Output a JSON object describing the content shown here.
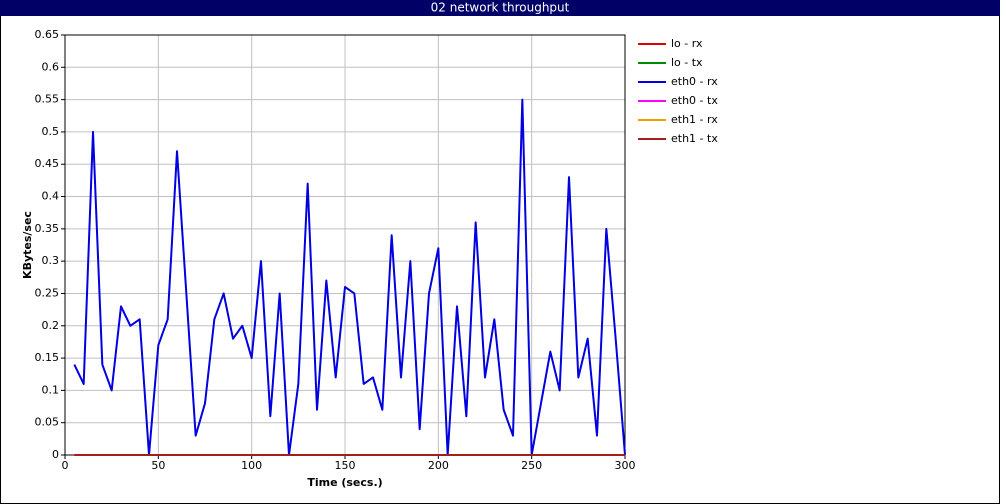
{
  "chart_data": {
    "type": "line",
    "title": "02 network throughput",
    "x_label": "Time (secs.)",
    "y_label": "KBytes/sec",
    "x": [
      5,
      10,
      15,
      20,
      25,
      30,
      35,
      40,
      45,
      50,
      55,
      60,
      65,
      70,
      75,
      80,
      85,
      90,
      95,
      100,
      105,
      110,
      115,
      120,
      125,
      130,
      135,
      140,
      145,
      150,
      155,
      160,
      165,
      170,
      175,
      180,
      185,
      190,
      195,
      200,
      205,
      210,
      215,
      220,
      225,
      230,
      235,
      240,
      245,
      250,
      255,
      260,
      265,
      270,
      275,
      280,
      285,
      290,
      295,
      300
    ],
    "series": [
      {
        "name": "lo - rx",
        "color": "#e00000",
        "values": [
          0,
          0,
          0,
          0,
          0,
          0,
          0,
          0,
          0,
          0,
          0,
          0,
          0,
          0,
          0,
          0,
          0,
          0,
          0,
          0,
          0,
          0,
          0,
          0,
          0,
          0,
          0,
          0,
          0,
          0,
          0,
          0,
          0,
          0,
          0,
          0,
          0,
          0,
          0,
          0,
          0,
          0,
          0,
          0,
          0,
          0,
          0,
          0,
          0,
          0,
          0,
          0,
          0,
          0,
          0,
          0,
          0,
          0,
          0,
          0
        ]
      },
      {
        "name": "lo - tx",
        "color": "#008c00",
        "values": [
          0,
          0,
          0,
          0,
          0,
          0,
          0,
          0,
          0,
          0,
          0,
          0,
          0,
          0,
          0,
          0,
          0,
          0,
          0,
          0,
          0,
          0,
          0,
          0,
          0,
          0,
          0,
          0,
          0,
          0,
          0,
          0,
          0,
          0,
          0,
          0,
          0,
          0,
          0,
          0,
          0,
          0,
          0,
          0,
          0,
          0,
          0,
          0,
          0,
          0,
          0,
          0,
          0,
          0,
          0,
          0,
          0,
          0,
          0,
          0
        ]
      },
      {
        "name": "eth0 - rx",
        "color": "#0000e0",
        "values": [
          0.14,
          0.11,
          0.5,
          0.14,
          0.1,
          0.23,
          0.2,
          0.21,
          0,
          0.17,
          0.21,
          0.47,
          0.25,
          0.03,
          0.08,
          0.21,
          0.25,
          0.18,
          0.2,
          0.15,
          0.3,
          0.06,
          0.25,
          0,
          0.11,
          0.42,
          0.07,
          0.27,
          0.12,
          0.26,
          0.25,
          0.11,
          0.12,
          0.07,
          0.34,
          0.12,
          0.3,
          0.04,
          0.25,
          0.32,
          0,
          0.23,
          0.06,
          0.36,
          0.12,
          0.21,
          0.07,
          0.03,
          0.55,
          0,
          0.08,
          0.16,
          0.1,
          0.43,
          0.12,
          0.18,
          0.03,
          0.35,
          0.18,
          0
        ]
      },
      {
        "name": "eth0 - tx",
        "color": "#ff00ff",
        "values": [
          0,
          0,
          0,
          0,
          0,
          0,
          0,
          0,
          0,
          0,
          0,
          0,
          0,
          0,
          0,
          0,
          0,
          0,
          0,
          0,
          0,
          0,
          0,
          0,
          0,
          0,
          0,
          0,
          0,
          0,
          0,
          0,
          0,
          0,
          0,
          0,
          0,
          0,
          0,
          0,
          0,
          0,
          0,
          0,
          0,
          0,
          0,
          0,
          0,
          0,
          0,
          0,
          0,
          0,
          0,
          0,
          0,
          0,
          0,
          0
        ]
      },
      {
        "name": "eth1 - rx",
        "color": "#f0a000",
        "values": [
          0,
          0,
          0,
          0,
          0,
          0,
          0,
          0,
          0,
          0,
          0,
          0,
          0,
          0,
          0,
          0,
          0,
          0,
          0,
          0,
          0,
          0,
          0,
          0,
          0,
          0,
          0,
          0,
          0,
          0,
          0,
          0,
          0,
          0,
          0,
          0,
          0,
          0,
          0,
          0,
          0,
          0,
          0,
          0,
          0,
          0,
          0,
          0,
          0,
          0,
          0,
          0,
          0,
          0,
          0,
          0,
          0,
          0,
          0,
          0
        ]
      },
      {
        "name": "eth1 - tx",
        "color": "#a02020",
        "values": [
          0,
          0,
          0,
          0,
          0,
          0,
          0,
          0,
          0,
          0,
          0,
          0,
          0,
          0,
          0,
          0,
          0,
          0,
          0,
          0,
          0,
          0,
          0,
          0,
          0,
          0,
          0,
          0,
          0,
          0,
          0,
          0,
          0,
          0,
          0,
          0,
          0,
          0,
          0,
          0,
          0,
          0,
          0,
          0,
          0,
          0,
          0,
          0,
          0,
          0,
          0,
          0,
          0,
          0,
          0,
          0,
          0,
          0,
          0,
          0
        ]
      }
    ],
    "xlim": [
      0,
      300
    ],
    "xticks": [
      0,
      50,
      100,
      150,
      200,
      250,
      300
    ],
    "ylim": [
      0,
      0.65
    ],
    "yticks": [
      0,
      0.05,
      0.1,
      0.15,
      0.2,
      0.25,
      0.3,
      0.35,
      0.4,
      0.45,
      0.5,
      0.55,
      0.6,
      0.65
    ],
    "grid": true,
    "legend": "right"
  }
}
